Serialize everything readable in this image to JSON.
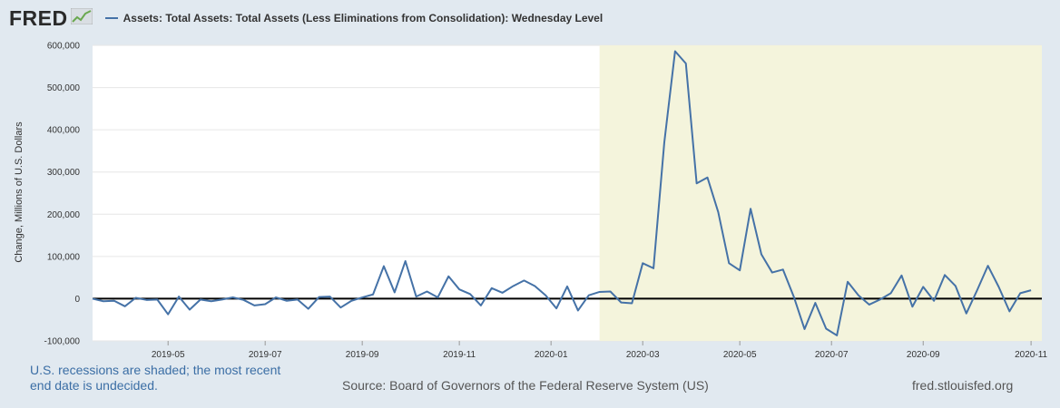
{
  "logo": {
    "text": "FRED",
    "mark_icon": "chart-line-icon"
  },
  "legend": {
    "label": "Assets: Total Assets: Total Assets (Less Eliminations from Consolidation): Wednesday Level",
    "color": "#4572a7"
  },
  "footer": {
    "recession_note": "U.S. recessions are shaded; the most recent end date is undecided.",
    "source": "Source: Board of Governors of the Federal Reserve System (US)",
    "site": "fred.stlouisfed.org"
  },
  "chart_data": {
    "type": "line",
    "title": "Assets: Total Assets: Total Assets (Less Eliminations from Consolidation): Wednesday Level",
    "xlabel": "",
    "ylabel": "Change, Millions of U.S. Dollars",
    "ylim": [
      -100000,
      600000
    ],
    "yticks": [
      -100000,
      0,
      100000,
      200000,
      300000,
      400000,
      500000,
      600000
    ],
    "ytick_labels": [
      "-100,000",
      "0",
      "100,000",
      "200,000",
      "300,000",
      "400,000",
      "500,000",
      "600,000"
    ],
    "xtick_labels": [
      "2019-05",
      "2019-07",
      "2019-09",
      "2019-11",
      "2020-01",
      "2020-03",
      "2020-05",
      "2020-07",
      "2020-09",
      "2020-11"
    ],
    "x_range_weeks": [
      0,
      88
    ],
    "xtick_weeks": [
      7,
      16,
      25,
      34,
      42.5,
      51,
      60,
      68.5,
      77,
      87
    ],
    "recession_shade": {
      "start_week": 47,
      "end_week": 88,
      "color": "#f4f4dc"
    },
    "zero_line": true,
    "series": [
      {
        "name": "Assets: Total Assets: Total Assets (Less Eliminations from Consolidation): Wednesday Level",
        "color": "#4572a7",
        "values": [
          0,
          -6000,
          -5000,
          -18000,
          2000,
          -3000,
          -2000,
          -37000,
          5000,
          -26000,
          -2000,
          -6000,
          -2000,
          3000,
          -3000,
          -16000,
          -13000,
          3000,
          -5000,
          -2000,
          -24000,
          4000,
          5000,
          -21000,
          -5000,
          3000,
          10000,
          77000,
          15000,
          89000,
          5000,
          17000,
          3000,
          53000,
          22000,
          11000,
          -16000,
          25000,
          14000,
          30000,
          43000,
          30000,
          8000,
          -23000,
          29000,
          -28000,
          8000,
          16000,
          17000,
          -9000,
          -11000,
          84000,
          72000,
          370000,
          586000,
          557000,
          273000,
          287000,
          205000,
          84000,
          67000,
          213000,
          105000,
          62000,
          69000,
          5000,
          -72000,
          -10000,
          -71000,
          -87000,
          40000,
          8000,
          -14000,
          -2000,
          13000,
          55000,
          -19000,
          28000,
          -5000,
          56000,
          30000,
          -35000,
          20000,
          78000,
          28000,
          -30000,
          13000,
          20000
        ]
      }
    ]
  }
}
